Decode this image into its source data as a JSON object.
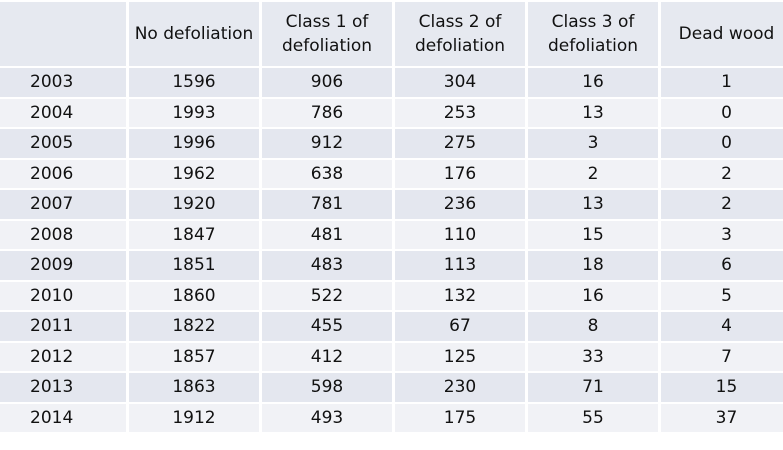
{
  "table": {
    "columns": [
      "No defoliation",
      "Class 1 of defoliation",
      "Class 2 of defoliation",
      "Class 3 of defoliation",
      "Dead wood"
    ],
    "rows": [
      [
        2003,
        1596,
        906,
        304,
        16,
        1
      ],
      [
        2004,
        1993,
        786,
        253,
        13,
        0
      ],
      [
        2005,
        1996,
        912,
        275,
        3,
        0
      ],
      [
        2006,
        1962,
        638,
        176,
        2,
        2
      ],
      [
        2007,
        1920,
        781,
        236,
        13,
        2
      ],
      [
        2008,
        1847,
        481,
        110,
        15,
        3
      ],
      [
        2009,
        1851,
        483,
        113,
        18,
        6
      ],
      [
        2010,
        1860,
        522,
        132,
        16,
        5
      ],
      [
        2011,
        1822,
        455,
        67,
        8,
        4
      ],
      [
        2012,
        1857,
        412,
        125,
        33,
        7
      ],
      [
        2013,
        1863,
        598,
        230,
        71,
        15
      ],
      [
        2014,
        1912,
        493,
        175,
        55,
        37
      ]
    ]
  }
}
